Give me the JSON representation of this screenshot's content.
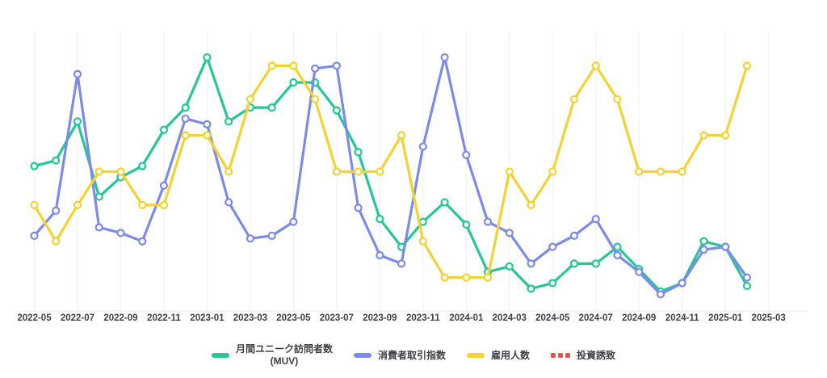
{
  "chart_data": {
    "type": "line",
    "title": "",
    "xlabel": "",
    "ylabel": "",
    "y_axis_labels_visible": false,
    "y_scale_note": "relative units 0-100, no y-axis ticks shown",
    "grid": "vertical-only",
    "legend_position": "bottom-center",
    "marker": "open-circle",
    "x_months": [
      "2022-05",
      "2022-06",
      "2022-07",
      "2022-08",
      "2022-09",
      "2022-10",
      "2022-11",
      "2022-12",
      "2023-01",
      "2023-02",
      "2023-03",
      "2023-04",
      "2023-05",
      "2023-06",
      "2023-07",
      "2023-08",
      "2023-09",
      "2023-10",
      "2023-11",
      "2023-12",
      "2024-01",
      "2024-02",
      "2024-03",
      "2024-04",
      "2024-05",
      "2024-06",
      "2024-07",
      "2024-08",
      "2024-09",
      "2024-10",
      "2024-11",
      "2024-12",
      "2025-01",
      "2025-02"
    ],
    "x_tick_labels": [
      "2022-05",
      "2022-07",
      "2022-09",
      "2022-11",
      "2023-01",
      "2023-03",
      "2023-05",
      "2023-07",
      "2023-09",
      "2023-11",
      "2024-01",
      "2024-03",
      "2024-05",
      "2024-07",
      "2024-09",
      "2024-11",
      "2025-01",
      "2025-03"
    ],
    "series": [
      {
        "key": "muv",
        "name": "月間ユニーク訪問者数",
        "sublabel": "(MUV)",
        "color": "#25c796",
        "style": "solid",
        "values": [
          52,
          54,
          68,
          41,
          48,
          52,
          65,
          73,
          91,
          68,
          73,
          73,
          82,
          82,
          72,
          57,
          33,
          23,
          32,
          39,
          31,
          14,
          16,
          8,
          10,
          17,
          17,
          23,
          15,
          7,
          10,
          25,
          23,
          9
        ]
      },
      {
        "key": "consumer-index",
        "name": "消費者取引指数",
        "sublabel": "",
        "color": "#7c8aea",
        "style": "solid",
        "values": [
          27,
          36,
          85,
          30,
          28,
          25,
          45,
          69,
          67,
          39,
          26,
          27,
          32,
          87,
          88,
          37,
          20,
          17,
          59,
          91,
          56,
          32,
          28,
          17,
          23,
          27,
          33,
          20,
          14,
          6,
          10,
          22,
          23,
          12
        ]
      },
      {
        "key": "employment",
        "name": "雇用人数",
        "sublabel": "",
        "color": "#f5d231",
        "style": "solid",
        "values": [
          38,
          25,
          38,
          50,
          50,
          38,
          38,
          63,
          63,
          50,
          76,
          88,
          88,
          76,
          50,
          50,
          50,
          63,
          25,
          12,
          12,
          12,
          50,
          38,
          50,
          76,
          88,
          76,
          50,
          50,
          50,
          63,
          63,
          88
        ]
      },
      {
        "key": "investment",
        "name": "投資誘致",
        "sublabel": "",
        "color": "#e25555",
        "style": "dashed",
        "values": []
      }
    ]
  }
}
